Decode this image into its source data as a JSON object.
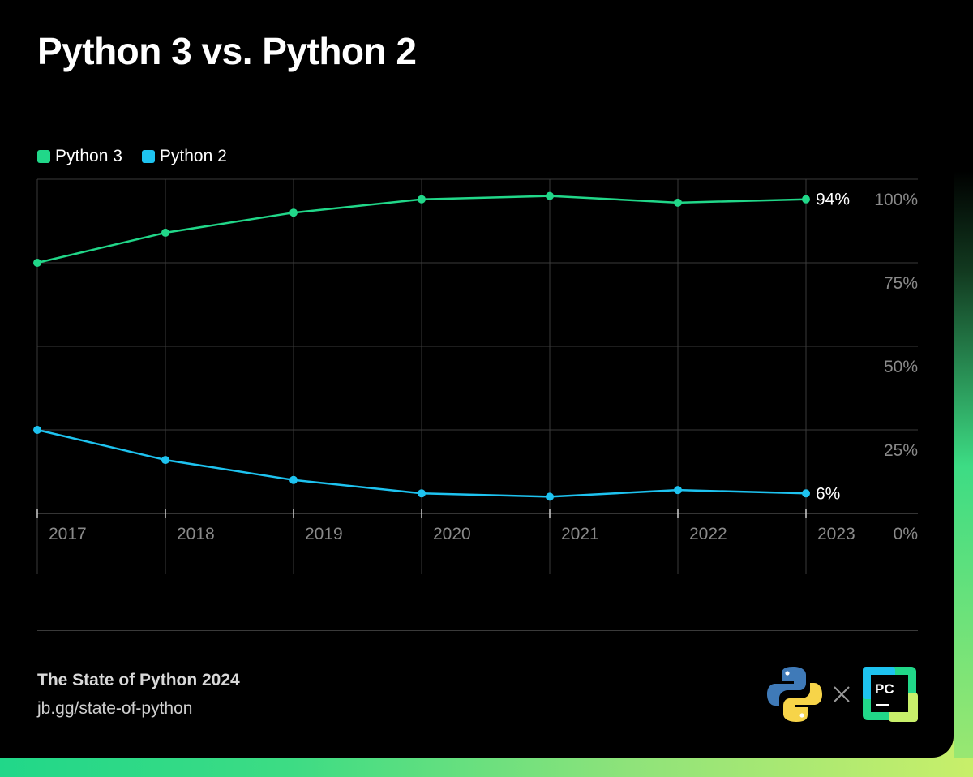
{
  "title": "Python 3 vs. Python 2",
  "footer": {
    "title": "The State of Python 2024",
    "url": "jb.gg/state-of-python"
  },
  "logos": {
    "python_icon": "python-logo-icon",
    "times_icon": "times-icon",
    "pycharm_icon": "pycharm-logo-icon",
    "pycharm_text": "PC"
  },
  "colors": {
    "python3": "#21d789",
    "python2": "#1ec3f0",
    "grid": "#3a3a3a",
    "tick_text": "#8a8a8a"
  },
  "chart_data": {
    "type": "line",
    "title": "Python 3 vs. Python 2",
    "categories": [
      "2017",
      "2018",
      "2019",
      "2020",
      "2021",
      "2022",
      "2023"
    ],
    "series": [
      {
        "name": "Python 3",
        "values": [
          75,
          84,
          90,
          94,
          95,
          93,
          94
        ],
        "end_label": "94%"
      },
      {
        "name": "Python 2",
        "values": [
          25,
          16,
          10,
          6,
          5,
          7,
          6
        ],
        "end_label": "6%"
      }
    ],
    "y_ticks": [
      "0%",
      "25%",
      "50%",
      "75%",
      "100%"
    ],
    "ylim": [
      0,
      100
    ],
    "xlabel": "",
    "ylabel": "",
    "legend": "top-left",
    "grid": true
  }
}
